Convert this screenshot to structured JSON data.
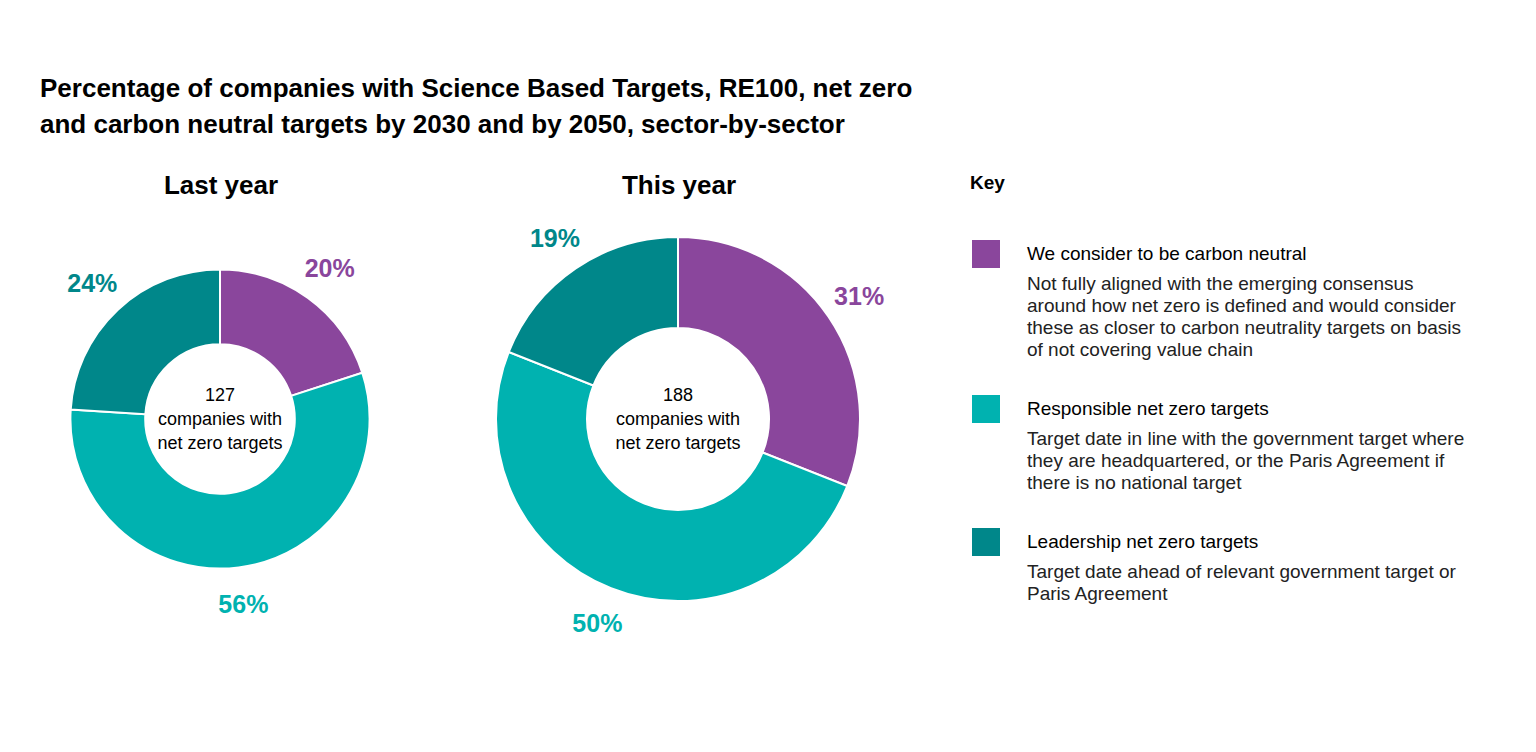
{
  "chart_data": {
    "type": "donut",
    "title": "Percentage of companies with Science Based Targets, RE100, net zero and carbon neutral targets by 2030 and by 2050, sector-by-sector",
    "legend_title": "Key",
    "categories": [
      "We consider to be carbon neutral",
      "Responsible net zero targets",
      "Leadership net zero targets"
    ],
    "descriptions": [
      "Not fully aligned with the emerging consensus around how net zero is defined and would consider these as closer to carbon neutrality targets on basis of not covering value chain",
      "Target date in line with the government target where they are headquartered, or the Paris Agreement if there is no national target",
      "Target date ahead of relevant government target or Paris Agreement"
    ],
    "colors": [
      "#8a469c",
      "#00b2b0",
      "#00878a"
    ],
    "data_labels": true,
    "series": [
      {
        "name": "Last year",
        "total": 127,
        "center_label": "companies with net zero targets",
        "values": [
          20,
          56,
          24
        ],
        "value_labels": [
          "20%",
          "56%",
          "24%"
        ]
      },
      {
        "name": "This year",
        "total": 188,
        "center_label": "companies with net zero targets",
        "values": [
          31,
          50,
          19
        ],
        "value_labels": [
          "31%",
          "50%",
          "19%"
        ]
      }
    ]
  }
}
